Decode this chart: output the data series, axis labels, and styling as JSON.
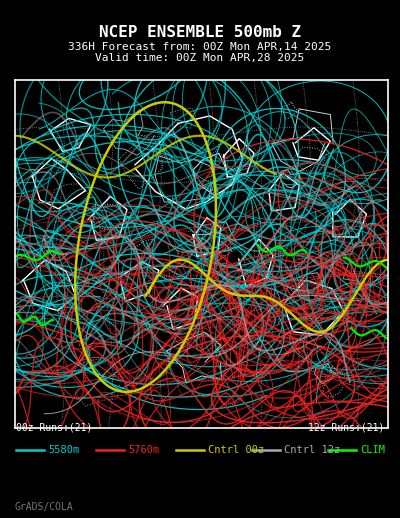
{
  "title_line1": "NCEP ENSEMBLE 500mb Z",
  "title_line2": "336H Forecast from: 00Z Mon APR,14 2025",
  "title_line3": "Valid time: 00Z Mon APR,28 2025",
  "label_00z": "00z Runs:(21)",
  "label_12z": "12z Runs:(21)",
  "legend_items": [
    {
      "label": "5580m",
      "color": "#00cccc",
      "lw": 1.8
    },
    {
      "label": "5760m",
      "color": "#ee2222",
      "lw": 1.8
    },
    {
      "label": "Cntrl 00z",
      "color": "#cccc00",
      "lw": 1.8
    },
    {
      "label": "Cntrl 12z",
      "color": "#aaaaaa",
      "lw": 1.8
    },
    {
      "label": "CLIM",
      "color": "#00ff00",
      "lw": 1.8
    }
  ],
  "watermark": "GrADS/COLA",
  "bg_color": "#000000",
  "plot_bg_color": "#000000",
  "border_color": "#ffffff",
  "title_color": "#ffffff",
  "label_color": "#ffffff",
  "watermark_color": "#777777",
  "figsize": [
    4.0,
    5.18
  ],
  "dpi": 100,
  "seed": 42
}
